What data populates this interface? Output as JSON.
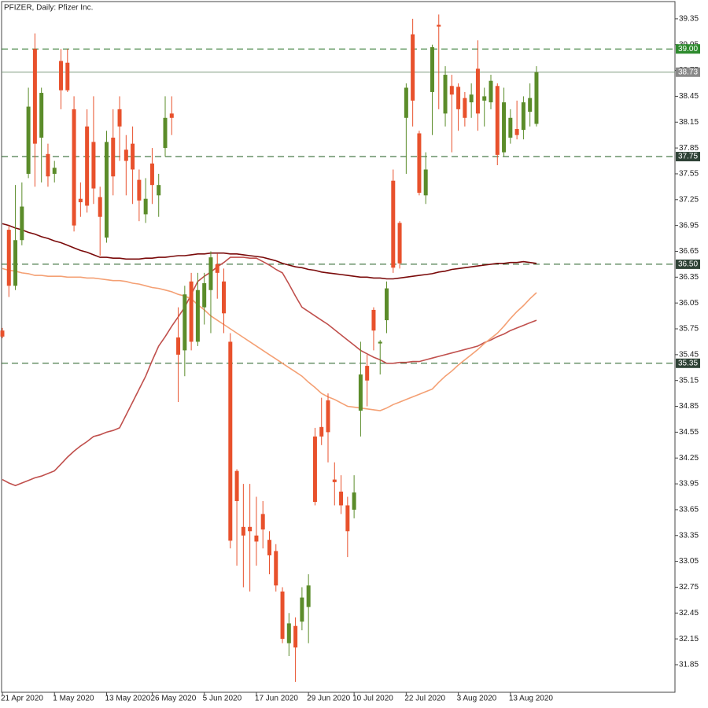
{
  "chart_data": {
    "type": "candlestick",
    "title": "PFIZER, Daily:  Pfizer Inc.",
    "categories": [
      "21 Apr 2020",
      null,
      null,
      null,
      null,
      null,
      null,
      null,
      "1 May 2020",
      null,
      null,
      null,
      null,
      null,
      null,
      null,
      "13 May 2020",
      null,
      null,
      null,
      null,
      null,
      null,
      "26 May 2020",
      null,
      null,
      null,
      null,
      null,
      null,
      null,
      "5 Jun 2020",
      null,
      null,
      null,
      null,
      null,
      null,
      null,
      "17 Jun 2020",
      null,
      null,
      null,
      null,
      null,
      null,
      null,
      "29 Jun 2020",
      null,
      null,
      null,
      null,
      null,
      null,
      "10 Jul 2020",
      null,
      null,
      null,
      null,
      null,
      null,
      null,
      "22 Jul 2020",
      null,
      null,
      null,
      null,
      null,
      null,
      null,
      "3 Aug 2020",
      null,
      null,
      null,
      null,
      null,
      null,
      null,
      "13 Aug 2020",
      null,
      null,
      null,
      null
    ],
    "open": [
      35.73,
      36.9,
      36.25,
      36.78,
      37.55,
      39.0,
      37.97,
      37.78,
      37.55,
      38.86,
      38.84,
      38.3,
      37.26,
      38.1,
      37.92,
      37.28,
      36.81,
      37.97,
      38.3,
      37.83,
      37.9,
      37.48,
      37.08,
      37.67,
      37.3,
      37.85,
      38.25,
      35.65,
      35.5,
      36.3,
      35.6,
      36.0,
      36.2,
      36.5,
      36.3,
      35.6,
      34.1,
      33.45,
      33.45,
      33.35,
      33.6,
      33.3,
      33.17,
      32.7,
      32.1,
      32.3,
      32.35,
      32.52,
      34.5,
      34.61,
      34.92,
      34.0,
      33.86,
      33.7,
      33.65,
      34.8,
      35.32,
      35.97,
      35.58,
      35.85,
      37.47,
      36.98,
      38.2,
      39.17,
      38.02,
      37.3,
      38.5,
      39.28,
      38.25,
      38.57,
      38.56,
      38.43,
      38.38,
      38.77,
      38.4,
      38.38,
      38.57,
      37.8,
      37.97,
      38.07,
      38.06,
      38.27,
      38.13
    ],
    "high": [
      35.76,
      36.95,
      37.42,
      37.45,
      38.55,
      39.18,
      38.55,
      37.9,
      37.7,
      39.0,
      39.0,
      38.45,
      37.45,
      38.3,
      38.45,
      37.4,
      38.05,
      38.3,
      38.45,
      38.0,
      38.1,
      37.6,
      37.5,
      37.85,
      37.55,
      38.45,
      38.45,
      36.0,
      36.25,
      36.4,
      36.4,
      36.4,
      36.65,
      36.62,
      36.45,
      35.7,
      34.12,
      33.95,
      33.95,
      33.8,
      33.75,
      33.4,
      33.25,
      32.75,
      32.45,
      32.4,
      32.75,
      32.9,
      34.6,
      34.95,
      35.0,
      34.2,
      34.05,
      33.8,
      34.05,
      35.6,
      35.45,
      36.0,
      35.62,
      36.3,
      37.6,
      37.0,
      38.6,
      39.35,
      38.05,
      37.8,
      39.05,
      39.4,
      38.8,
      38.7,
      38.6,
      38.5,
      38.6,
      39.1,
      38.55,
      38.7,
      38.6,
      38.55,
      38.3,
      38.4,
      38.45,
      38.6,
      38.8
    ],
    "low": [
      35.64,
      36.12,
      36.2,
      36.72,
      37.5,
      37.4,
      37.45,
      37.4,
      37.45,
      38.3,
      38.5,
      36.88,
      37.05,
      37.1,
      37.2,
      36.6,
      36.75,
      37.3,
      37.7,
      37.3,
      37.2,
      37.0,
      36.98,
      37.2,
      37.05,
      37.75,
      38.0,
      34.9,
      35.2,
      35.5,
      35.55,
      35.8,
      35.7,
      36.1,
      35.7,
      33.2,
      33.0,
      32.75,
      32.7,
      33.0,
      33.2,
      32.9,
      32.7,
      32.1,
      31.95,
      31.65,
      32.25,
      32.1,
      33.7,
      34.4,
      34.2,
      33.7,
      33.6,
      33.1,
      33.55,
      34.5,
      34.85,
      35.5,
      35.22,
      35.7,
      36.4,
      36.45,
      37.55,
      38.1,
      37.3,
      37.2,
      38.0,
      38.3,
      38.1,
      37.8,
      38.05,
      38.1,
      38.2,
      38.05,
      38.1,
      38.3,
      37.65,
      37.75,
      37.9,
      37.95,
      37.95,
      38.1,
      38.1
    ],
    "close": [
      35.66,
      36.25,
      36.78,
      37.17,
      38.33,
      37.9,
      38.49,
      37.52,
      37.62,
      38.52,
      38.52,
      36.95,
      37.22,
      37.18,
      37.38,
      37.05,
      37.92,
      37.52,
      38.1,
      37.7,
      37.6,
      37.24,
      37.26,
      37.42,
      37.42,
      38.2,
      38.2,
      35.45,
      36.15,
      35.6,
      36.2,
      36.28,
      36.58,
      36.4,
      35.93,
      33.29,
      33.75,
      33.35,
      33.4,
      33.28,
      33.42,
      33.12,
      32.77,
      32.15,
      32.33,
      32.05,
      32.63,
      32.77,
      33.74,
      34.5,
      34.55,
      33.97,
      33.7,
      33.4,
      33.85,
      35.22,
      35.15,
      35.73,
      35.6,
      36.22,
      36.46,
      36.51,
      38.55,
      38.4,
      37.33,
      37.6,
      39.02,
      39.26,
      38.7,
      38.47,
      38.3,
      38.2,
      38.47,
      38.25,
      38.45,
      38.63,
      37.77,
      38.38,
      38.2,
      38.0,
      38.38,
      38.43,
      38.73
    ],
    "up_color": "#5b8c2a",
    "down_color": "#e8512c",
    "lines": [
      {
        "color": "#7a0a0a",
        "values": [
          36.97,
          36.95,
          36.92,
          36.9,
          36.87,
          36.85,
          36.82,
          36.8,
          36.77,
          36.75,
          36.72,
          36.69,
          36.66,
          36.64,
          36.61,
          36.58,
          36.58,
          36.57,
          36.57,
          36.56,
          36.56,
          36.56,
          36.57,
          36.57,
          36.58,
          36.58,
          36.59,
          36.6,
          36.6,
          36.61,
          36.62,
          36.62,
          36.63,
          36.63,
          36.63,
          36.62,
          36.62,
          36.61,
          36.6,
          36.59,
          36.58,
          36.56,
          36.54,
          36.51,
          36.49,
          36.47,
          36.46,
          36.44,
          36.43,
          36.41,
          36.4,
          36.39,
          36.38,
          36.37,
          36.36,
          36.35,
          36.35,
          36.34,
          36.34,
          36.33,
          36.33,
          36.34,
          36.35,
          36.36,
          36.37,
          36.38,
          36.39,
          36.41,
          36.42,
          36.44,
          36.45,
          36.46,
          36.47,
          36.48,
          36.49,
          36.5,
          36.51,
          36.51,
          36.52,
          36.52,
          36.53,
          36.52,
          36.51
        ]
      },
      {
        "color": "#c0504d",
        "values": [
          34.0,
          33.96,
          33.93,
          33.96,
          33.99,
          34.02,
          34.04,
          34.07,
          34.1,
          34.18,
          34.26,
          34.33,
          34.39,
          34.44,
          34.5,
          34.52,
          34.55,
          34.57,
          34.6,
          34.75,
          34.9,
          35.05,
          35.2,
          35.38,
          35.55,
          35.66,
          35.78,
          35.89,
          36.0,
          36.15,
          36.3,
          36.36,
          36.41,
          36.47,
          36.52,
          36.58,
          36.58,
          36.58,
          36.57,
          36.57,
          36.53,
          36.49,
          36.44,
          36.4,
          36.27,
          36.13,
          36.0,
          35.95,
          35.9,
          35.85,
          35.8,
          35.74,
          35.68,
          35.62,
          35.56,
          35.5,
          35.46,
          35.42,
          35.39,
          35.35,
          35.35,
          35.36,
          35.36,
          35.37,
          35.37,
          35.39,
          35.41,
          35.43,
          35.45,
          35.47,
          35.49,
          35.51,
          35.53,
          35.55,
          35.59,
          35.62,
          35.66,
          35.69,
          35.73,
          35.76,
          35.79,
          35.82,
          35.85
        ]
      },
      {
        "color": "#f4a074",
        "values": [
          36.45,
          36.43,
          36.42,
          36.4,
          36.39,
          36.37,
          36.37,
          36.36,
          36.36,
          36.36,
          36.35,
          36.35,
          36.35,
          36.34,
          36.34,
          36.33,
          36.32,
          36.31,
          36.31,
          36.3,
          36.28,
          36.27,
          36.25,
          36.23,
          36.22,
          36.2,
          36.18,
          36.15,
          36.13,
          36.1,
          36.03,
          35.97,
          35.9,
          35.85,
          35.8,
          35.75,
          35.7,
          35.65,
          35.6,
          35.55,
          35.5,
          35.45,
          35.4,
          35.35,
          35.3,
          35.25,
          35.2,
          35.13,
          35.07,
          35.0,
          34.96,
          34.93,
          34.89,
          34.85,
          34.84,
          34.83,
          34.82,
          34.81,
          34.8,
          34.83,
          34.87,
          34.9,
          34.93,
          34.96,
          34.99,
          35.02,
          35.05,
          35.13,
          35.2,
          35.26,
          35.33,
          35.39,
          35.45,
          35.51,
          35.58,
          35.64,
          35.7,
          35.78,
          35.87,
          35.95,
          36.02,
          36.1,
          36.17
        ]
      }
    ],
    "levels": [
      {
        "price": {
          "value": 39,
          "label": "39.00"
        },
        "color": "#1e6b1e",
        "box": "#2e8b2e",
        "dashed": true
      },
      {
        "price": 38.73,
        "color": "#7f9a7f",
        "box": "#8a8a8a",
        "dashed": false
      },
      {
        "price": 37.75,
        "color": "#1e5a1e",
        "box": "#2f4236",
        "dashed": true
      },
      {
        "price": {
          "value": 36.5,
          "label": "36.50"
        },
        "color": "#1e5a1e",
        "box": "#2f4236",
        "dashed": true
      },
      {
        "price": 35.35,
        "color": "#1e5a1e",
        "box": "#2f4236",
        "dashed": true
      }
    ],
    "ylim": [
      31.53,
      39.55
    ],
    "yticks": [
      31.85,
      32.15,
      32.45,
      32.75,
      33.05,
      33.35,
      33.65,
      33.95,
      34.25,
      34.55,
      34.85,
      35.15,
      35.45,
      35.75,
      36.05,
      36.35,
      36.65,
      36.95,
      37.25,
      37.55,
      37.85,
      38.15,
      38.45,
      38.75,
      39.05,
      39.35
    ]
  }
}
